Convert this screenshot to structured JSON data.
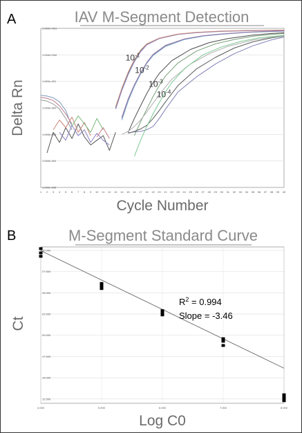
{
  "chart_data": [
    {
      "panel": "A",
      "type": "line",
      "title": "IAV M-Segment Detection",
      "xlabel": "Cycle Number",
      "ylabel": "Delta Rn",
      "grid": true,
      "xlim": [
        1,
        40
      ],
      "ylim": [
        1e-05,
        10
      ],
      "y_log": true,
      "x_ticks": [
        1,
        2,
        3,
        4,
        5,
        6,
        7,
        8,
        9,
        10,
        11,
        12,
        13,
        14,
        15,
        16,
        17,
        18,
        19,
        20,
        21,
        22,
        23,
        24,
        25,
        26,
        27,
        28,
        29,
        30,
        31,
        32,
        33,
        34,
        35,
        36,
        37,
        38,
        39,
        40
      ],
      "y_ticks": [
        {
          "value": 1e-05,
          "label": "1.000e-005"
        },
        {
          "value": 0.0001,
          "label": "1.000e-004"
        },
        {
          "value": 0.001,
          "label": "1.000e-003"
        },
        {
          "value": 0.01,
          "label": "1.000e-002"
        },
        {
          "value": 0.1,
          "label": "1.000e-001"
        },
        {
          "value": 1,
          "label": "1.000e+000"
        },
        {
          "value": 10,
          "label": "1.000e+001"
        }
      ],
      "annotations": [
        {
          "base": "10",
          "exp": "-1",
          "x": 14.6,
          "y": 0.62
        },
        {
          "base": "10",
          "exp": "-2",
          "x": 16.1,
          "y": 0.21
        },
        {
          "base": "10",
          "exp": "-3",
          "x": 18.3,
          "y": 0.062
        },
        {
          "base": "10",
          "exp": "-4",
          "x": 19.6,
          "y": 0.025
        }
      ],
      "series": [
        {
          "color": "#5a9e7a",
          "x": [
            13,
            14,
            15,
            16,
            17,
            18,
            20,
            23,
            26,
            30,
            34,
            38,
            40
          ],
          "y": [
            0.01,
            0.05,
            0.2,
            0.6,
            1.4,
            2.5,
            4.2,
            6,
            7,
            7.8,
            8.2,
            8.4,
            8.5
          ]
        },
        {
          "color": "#8a7fc0",
          "x": [
            13,
            14,
            15,
            16,
            17,
            18,
            20,
            23,
            26,
            30,
            34,
            38,
            40
          ],
          "y": [
            0.009,
            0.045,
            0.18,
            0.55,
            1.3,
            2.4,
            4.1,
            5.9,
            6.9,
            7.7,
            8.1,
            8.3,
            8.4
          ]
        },
        {
          "color": "#c8857a",
          "x": [
            13,
            14,
            15,
            16,
            17,
            18,
            20,
            23,
            26,
            30,
            34,
            38,
            40
          ],
          "y": [
            0.011,
            0.055,
            0.22,
            0.65,
            1.5,
            2.6,
            4.3,
            6.1,
            7.1,
            7.9,
            8.3,
            8.5,
            8.6
          ]
        },
        {
          "color": "#909090",
          "x": [
            14,
            15,
            16,
            17,
            18,
            19,
            21,
            24,
            27,
            30,
            34,
            38,
            40
          ],
          "y": [
            0.004,
            0.02,
            0.07,
            0.2,
            0.5,
            1.0,
            2.2,
            3.9,
            5.2,
            6.1,
            7.1,
            7.7,
            7.9
          ]
        },
        {
          "color": "#6b9bc8",
          "x": [
            14,
            15,
            16,
            17,
            18,
            19,
            21,
            24,
            27,
            30,
            34,
            38,
            40
          ],
          "y": [
            0.0035,
            0.018,
            0.065,
            0.19,
            0.48,
            0.95,
            2.1,
            3.8,
            5.1,
            6,
            7,
            7.6,
            7.8
          ]
        },
        {
          "color": "#a07aa8",
          "x": [
            14,
            15,
            16,
            17,
            18,
            19,
            21,
            24,
            27,
            30,
            34,
            38,
            40
          ],
          "y": [
            0.0045,
            0.022,
            0.075,
            0.21,
            0.52,
            1.05,
            2.3,
            4.0,
            5.3,
            6.2,
            7.2,
            7.8,
            8
          ]
        },
        {
          "color": "#4a4a4a",
          "x": [
            15,
            16,
            17,
            18,
            19,
            20,
            22,
            25,
            28,
            31,
            35,
            38,
            40
          ],
          "y": [
            0.0012,
            0.004,
            0.012,
            0.035,
            0.09,
            0.2,
            0.6,
            1.6,
            2.9,
            4.1,
            5.6,
            6.4,
            6.8
          ]
        },
        {
          "color": "#7aa07a",
          "x": [
            16,
            17,
            18,
            19,
            20,
            21,
            23,
            26,
            29,
            32,
            35,
            38,
            40
          ],
          "y": [
            0.0009,
            0.003,
            0.009,
            0.027,
            0.07,
            0.16,
            0.5,
            1.4,
            2.6,
            3.8,
            5.0,
            5.9,
            6.4
          ]
        },
        {
          "color": "#8080b8",
          "x": [
            15,
            16,
            17,
            18,
            19,
            20,
            21,
            23,
            26,
            29,
            32,
            35,
            38,
            40
          ],
          "y": [
            0.00115,
            0.00125,
            0.0013,
            0.0015,
            0.002,
            0.004,
            0.009,
            0.04,
            0.15,
            0.45,
            1.1,
            2.2,
            3.7,
            4.7
          ]
        },
        {
          "color": "#5a5a5a",
          "x": [
            15,
            16,
            17,
            18,
            19,
            20,
            21,
            23,
            26,
            29,
            32,
            35,
            38,
            40
          ],
          "y": [
            0.0011,
            0.0013,
            0.0016,
            0.0022,
            0.004,
            0.008,
            0.017,
            0.07,
            0.3,
            0.8,
            1.8,
            3.1,
            4.4,
            5.1
          ]
        },
        {
          "color": "#b0b0b0",
          "x": [
            14,
            15,
            16,
            17,
            18,
            19,
            20,
            22,
            25,
            28,
            31,
            35,
            38,
            40
          ],
          "y": [
            0.001,
            0.0013,
            0.002,
            0.0035,
            0.007,
            0.015,
            0.032,
            0.12,
            0.45,
            1.1,
            2.1,
            3.6,
            4.6,
            5.2
          ]
        },
        {
          "color": "#7ac890",
          "x": [
            16,
            17,
            18,
            19,
            20,
            21,
            22,
            24,
            27,
            30,
            33,
            36,
            40
          ],
          "y": [
            0.00015,
            0.0006,
            0.002,
            0.006,
            0.016,
            0.04,
            0.09,
            0.3,
            1.0,
            2.0,
            3.2,
            4.4,
            5.5
          ]
        },
        {
          "color": "#7a9ab8",
          "x": [
            1,
            2,
            3,
            4,
            5,
            6
          ],
          "y": [
            0.03,
            0.028,
            0.024,
            0.017,
            0.008,
            0.002
          ]
        },
        {
          "color": "#b87a8a",
          "x": [
            1,
            2,
            3,
            4,
            5,
            6
          ],
          "y": [
            0.025,
            0.023,
            0.019,
            0.012,
            0.006,
            0.0025
          ]
        },
        {
          "color": "#999999",
          "x": [
            1,
            2,
            3,
            4,
            5,
            6
          ],
          "y": [
            0.02,
            0.018,
            0.014,
            0.009,
            0.004,
            0.0015
          ]
        },
        {
          "color": "#555555",
          "x": [
            2,
            3,
            4,
            5,
            6,
            7,
            8,
            9,
            10,
            11,
            12,
            13
          ],
          "y": [
            0.0002,
            0.0012,
            0.0005,
            0.0018,
            0.0007,
            0.0025,
            0.0008,
            0.0004,
            0.0006,
            0.0009,
            0.00025,
            0.0012
          ]
        },
        {
          "color": "#8a7fc0",
          "x": [
            4,
            5,
            6,
            7,
            8,
            9,
            10,
            11,
            12
          ],
          "y": [
            0.0012,
            0.0006,
            0.0022,
            0.0009,
            0.0015,
            0.0005,
            0.0011,
            0.0006,
            0.0004
          ]
        },
        {
          "color": "#c8857a",
          "x": [
            3,
            4,
            5,
            6,
            7,
            8,
            9
          ],
          "y": [
            0.0015,
            0.0035,
            0.0018,
            0.0045,
            0.0012,
            0.0028,
            0.0009
          ]
        },
        {
          "color": "#7ab87a",
          "x": [
            6,
            7,
            8,
            9,
            10,
            11
          ],
          "y": [
            0.002,
            0.005,
            0.0025,
            0.0012,
            0.004,
            0.0015
          ]
        },
        {
          "color": "#c87a8a",
          "x": [
            10,
            11,
            12
          ],
          "y": [
            0.0008,
            0.0018,
            0.0007
          ]
        }
      ]
    },
    {
      "panel": "B",
      "type": "scatter",
      "title": "M-Segment Standard Curve",
      "xlabel": "Log C0",
      "ylabel": "Ct",
      "grid": true,
      "xlim": [
        4.0,
        8.0
      ],
      "ylim": [
        12.0,
        30.4
      ],
      "x_ticks": [
        {
          "value": 4,
          "label": "4.000"
        },
        {
          "value": 5,
          "label": "5.000"
        },
        {
          "value": 6,
          "label": "6.000"
        },
        {
          "value": 7,
          "label": "7.000"
        },
        {
          "value": 8,
          "label": "8.000"
        }
      ],
      "y_ticks": [
        {
          "value": 12.5,
          "label": "12.500"
        },
        {
          "value": 15.0,
          "label": "15.000"
        },
        {
          "value": 17.5,
          "label": "17.500"
        },
        {
          "value": 20.0,
          "label": "20.000"
        },
        {
          "value": 22.5,
          "label": "22.500"
        },
        {
          "value": 25.0,
          "label": "25.000"
        },
        {
          "value": 27.5,
          "label": "27.500"
        },
        {
          "value": 30.0,
          "label": "30.000"
        }
      ],
      "points": {
        "x": [
          4,
          4,
          4,
          5,
          5,
          5,
          6,
          6,
          6,
          7,
          7,
          7,
          8,
          8,
          8,
          8
        ],
        "y": [
          30.2,
          29.7,
          29.3,
          26.1,
          25.8,
          25.5,
          22.9,
          22.6,
          22.4,
          19.6,
          19.3,
          18.8,
          13.0,
          12.7,
          12.5,
          12.3
        ]
      },
      "fit": {
        "slope": -3.46,
        "intercept": 43.8,
        "x": [
          4.0,
          8.0
        ]
      },
      "stats": {
        "r_label": "R",
        "r_sup": "2",
        "r_value": " = 0.994",
        "slope_text": "Slope = -3.46"
      }
    }
  ]
}
